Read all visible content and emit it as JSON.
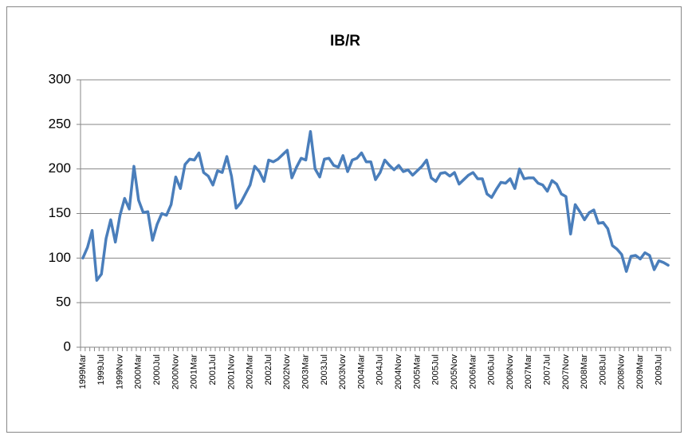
{
  "chart_data": {
    "type": "line",
    "title": "IB/R",
    "categories": [
      "1999Mar",
      null,
      null,
      null,
      "1999Jul",
      null,
      null,
      null,
      "1999Nov",
      null,
      null,
      null,
      "2000Mar",
      null,
      null,
      null,
      "2000Jul",
      null,
      null,
      null,
      "2000Nov",
      null,
      null,
      null,
      "2001Mar",
      null,
      null,
      null,
      "2001Jul",
      null,
      null,
      null,
      "2001Nov",
      null,
      null,
      null,
      "2002Mar",
      null,
      null,
      null,
      "2002Jul",
      null,
      null,
      null,
      "2002Nov",
      null,
      null,
      null,
      "2003Mar",
      null,
      null,
      null,
      "2003Jul",
      null,
      null,
      null,
      "2003Nov",
      null,
      null,
      null,
      "2004Mar",
      null,
      null,
      null,
      "2004Jul",
      null,
      null,
      null,
      "2004Nov",
      null,
      null,
      null,
      "2005Mar",
      null,
      null,
      null,
      "2005Jul",
      null,
      null,
      null,
      "2005Nov",
      null,
      null,
      null,
      "2006Mar",
      null,
      null,
      null,
      "2006Jul",
      null,
      null,
      null,
      "2006Nov",
      null,
      null,
      null,
      "2007Mar",
      null,
      null,
      null,
      "2007Jul",
      null,
      null,
      null,
      "2007Nov",
      null,
      null,
      null,
      "2008Mar",
      null,
      null,
      null,
      "2008Jul",
      null,
      null,
      null,
      "2008Nov",
      null,
      null,
      null,
      "2009Mar",
      null,
      null,
      null,
      "2009Jul",
      null,
      null
    ],
    "values": [
      100,
      112,
      131,
      75,
      82,
      122,
      143,
      118,
      148,
      167,
      155,
      203,
      165,
      151,
      152,
      120,
      138,
      150,
      148,
      160,
      191,
      178,
      205,
      211,
      210,
      218,
      196,
      192,
      182,
      198,
      196,
      214,
      192,
      156,
      162,
      172,
      182,
      203,
      197,
      186,
      210,
      208,
      211,
      216,
      221,
      190,
      202,
      212,
      210,
      242,
      200,
      191,
      211,
      212,
      204,
      202,
      215,
      197,
      210,
      212,
      218,
      208,
      208,
      188,
      196,
      210,
      204,
      199,
      204,
      197,
      199,
      193,
      198,
      203,
      210,
      190,
      186,
      195,
      196,
      192,
      196,
      183,
      188,
      193,
      196,
      189,
      189,
      172,
      168,
      177,
      185,
      184,
      189,
      178,
      200,
      189,
      190,
      190,
      184,
      182,
      175,
      187,
      183,
      172,
      169,
      127,
      160,
      152,
      143,
      151,
      154,
      139,
      140,
      133,
      114,
      110,
      104,
      85,
      102,
      103,
      99,
      106,
      103,
      87,
      97,
      95,
      92
    ],
    "color": "#4a7ebb",
    "ylim": [
      0,
      300
    ],
    "yticks": [
      0,
      50,
      100,
      150,
      200,
      250,
      300
    ],
    "grid": true
  }
}
